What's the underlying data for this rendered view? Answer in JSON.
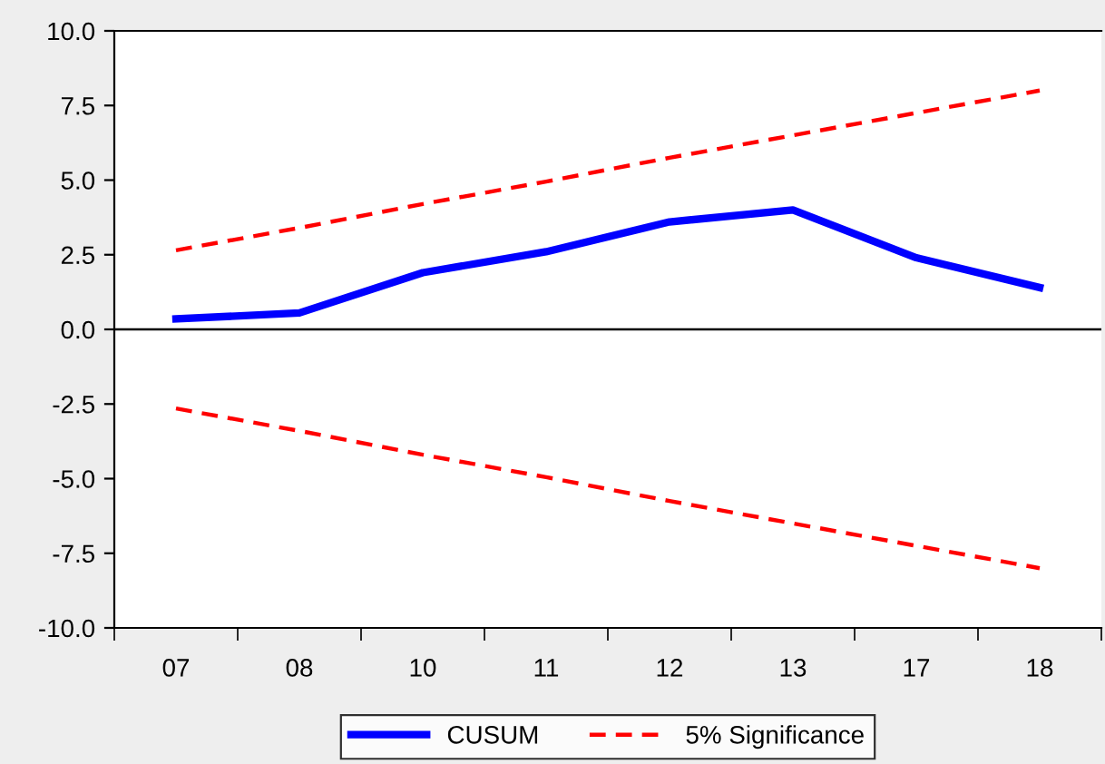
{
  "chart_data": {
    "type": "line",
    "categories": [
      "07",
      "08",
      "10",
      "11",
      "12",
      "13",
      "17",
      "18"
    ],
    "series": [
      {
        "name": "CUSUM",
        "color": "#0000ff",
        "line_style": "solid",
        "values": [
          0.35,
          0.55,
          1.9,
          2.6,
          3.6,
          4.0,
          2.4,
          1.4
        ]
      },
      {
        "name": "5% Significance",
        "color": "#ff0000",
        "line_style": "dashed",
        "values": [
          2.65,
          3.4,
          4.2,
          4.95,
          5.75,
          6.5,
          7.25,
          8.0
        ]
      },
      {
        "color": "#ff0000",
        "line_style": "dashed",
        "values": [
          -2.65,
          -3.4,
          -4.2,
          -4.95,
          -5.75,
          -6.5,
          -7.25,
          -8.0
        ]
      }
    ],
    "ylim": [
      -10,
      10
    ],
    "yticks": [
      {
        "value": -10,
        "label": "-10.0"
      },
      {
        "value": -7.5,
        "label": "-7.5"
      },
      {
        "value": -5,
        "label": "-5.0"
      },
      {
        "value": -2.5,
        "label": "-2.5"
      },
      {
        "value": 0,
        "label": "0.0"
      },
      {
        "value": 2.5,
        "label": "2.5"
      },
      {
        "value": 5,
        "label": "5.0"
      },
      {
        "value": 7.5,
        "label": "7.5"
      },
      {
        "value": 10,
        "label": "10.0"
      }
    ],
    "ref_lines": [
      {
        "axis": "y",
        "value": 0,
        "color": "#000000"
      }
    ],
    "marker": "none",
    "grid": false,
    "legend": "bottom"
  }
}
